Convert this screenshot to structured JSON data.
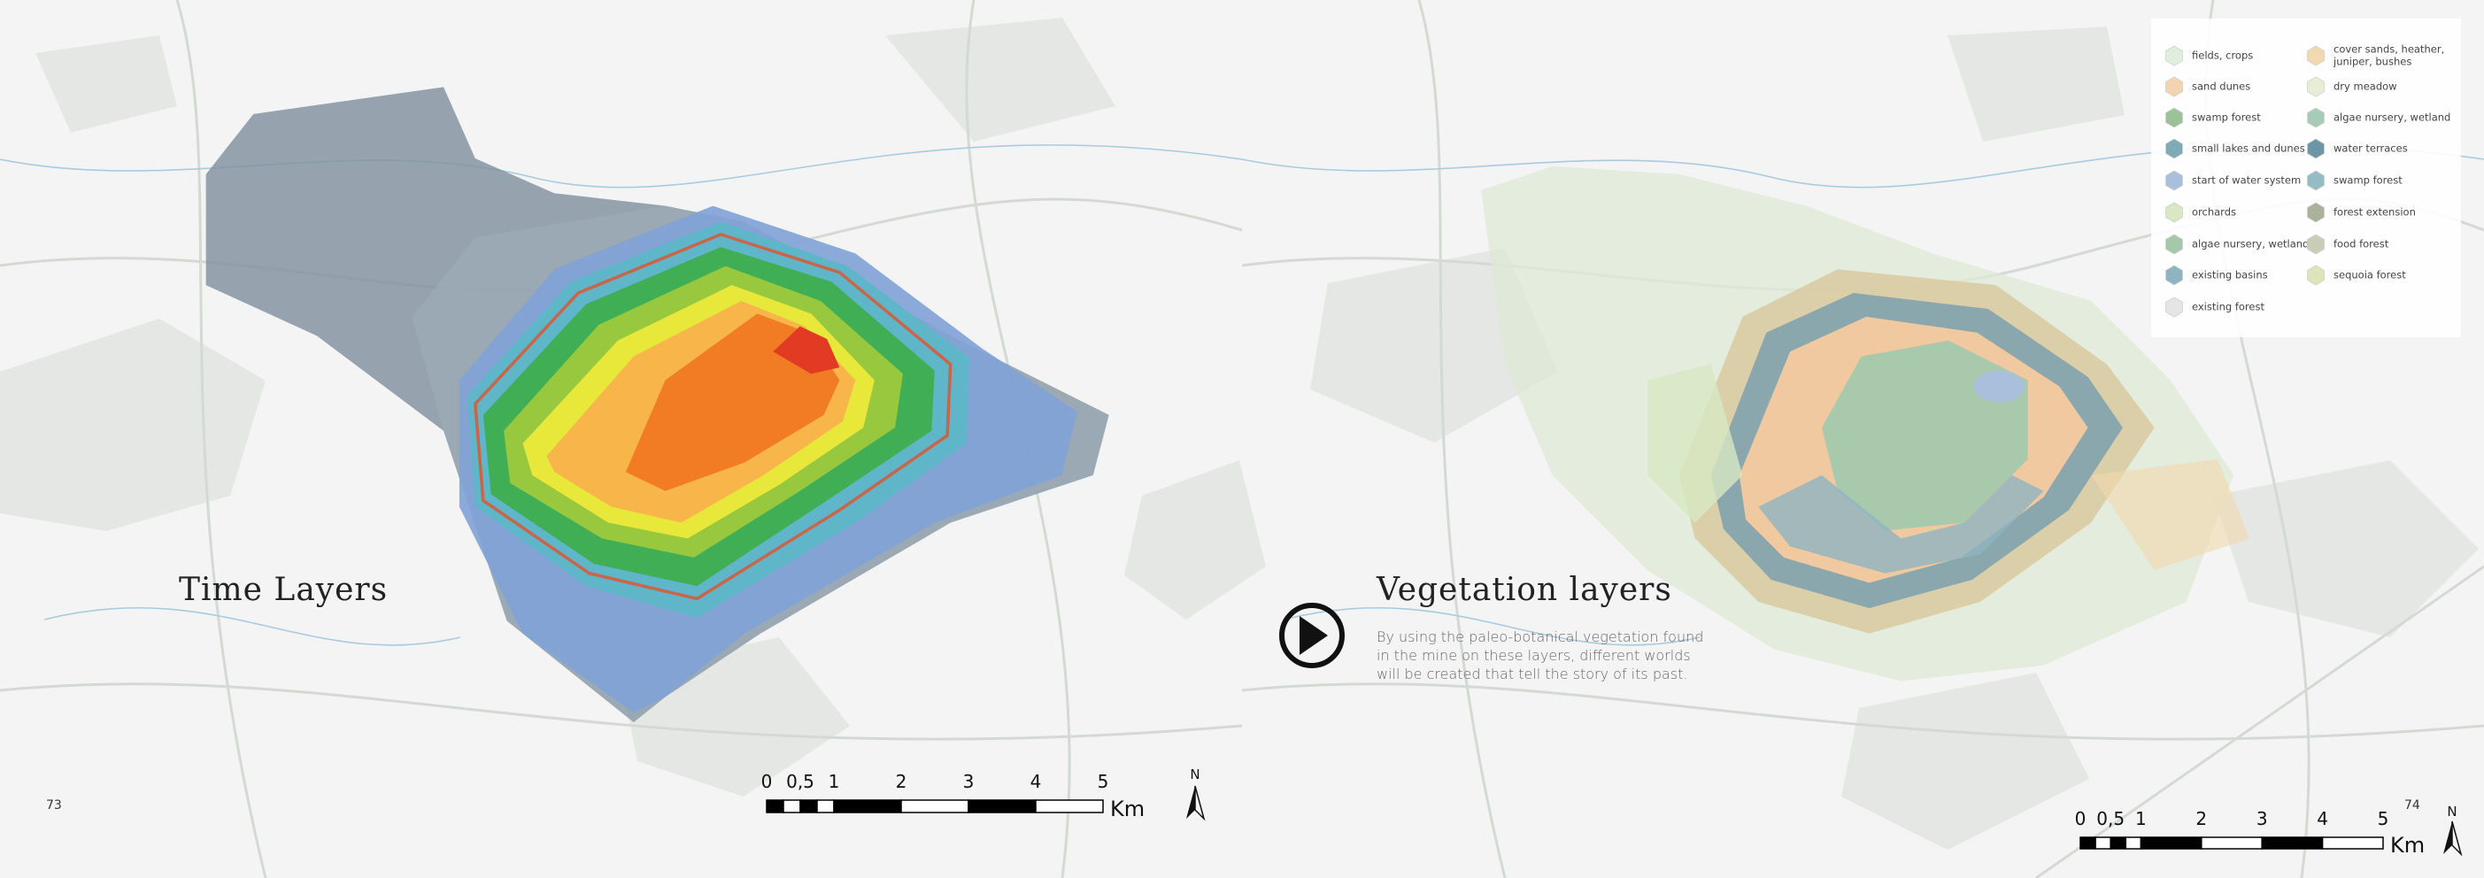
{
  "left_page": {
    "title": "Time Layers",
    "page_number": "73",
    "scale_bar": {
      "labels": [
        "0",
        "0,5",
        "1",
        "2",
        "3",
        "4",
        "5"
      ],
      "unit": "Km"
    },
    "north": "N"
  },
  "right_page": {
    "title": "Vegetation layers",
    "description": [
      "By using the paleo-botanical vegetation found",
      "in the mine on these layers, different worlds",
      "will be created that tell the story of its past."
    ],
    "page_number": "74",
    "scale_bar": {
      "labels": [
        "0",
        "0,5",
        "1",
        "2",
        "3",
        "4",
        "5"
      ],
      "unit": "Km"
    },
    "north": "N",
    "legend": {
      "columns": [
        [
          {
            "label": [
              "fields, crops"
            ],
            "color": "#dfeedd"
          },
          {
            "label": [
              "sand dunes"
            ],
            "color": "#f3d3b0"
          },
          {
            "label": [
              "swamp forest"
            ],
            "color": "#9cc29a"
          },
          {
            "label": [
              "small lakes and dunes"
            ],
            "color": "#7fa9b5"
          },
          {
            "label": [
              "start of water system"
            ],
            "color": "#a9bfdc"
          },
          {
            "label": [
              "orchards"
            ],
            "color": "#d7e8c2"
          },
          {
            "label": [
              "algae nursery, wetland"
            ],
            "color": "#a6c7a9"
          },
          {
            "label": [
              "existing basins"
            ],
            "color": "#8eb4c2"
          },
          {
            "label": [
              "existing forest"
            ],
            "color": "#e4e6e3"
          }
        ],
        [
          {
            "label": [
              "cover sands, heather,",
              "juniper, bushes"
            ],
            "color": "#f2d8ae"
          },
          {
            "label": [
              "dry meadow"
            ],
            "color": "#e7eed5"
          },
          {
            "label": [
              "algae nursery, wetland"
            ],
            "color": "#a8cbb7"
          },
          {
            "label": [
              "water terraces"
            ],
            "color": "#6e96a6"
          },
          {
            "label": [
              "swamp forest"
            ],
            "color": "#95bcc4"
          },
          {
            "label": [
              "forest extension"
            ],
            "color": "#aab29c"
          },
          {
            "label": [
              "food forest"
            ],
            "color": "#c7cdb6"
          },
          {
            "label": [
              "sequoia forest"
            ],
            "color": "#dfe3b8"
          }
        ]
      ]
    }
  }
}
